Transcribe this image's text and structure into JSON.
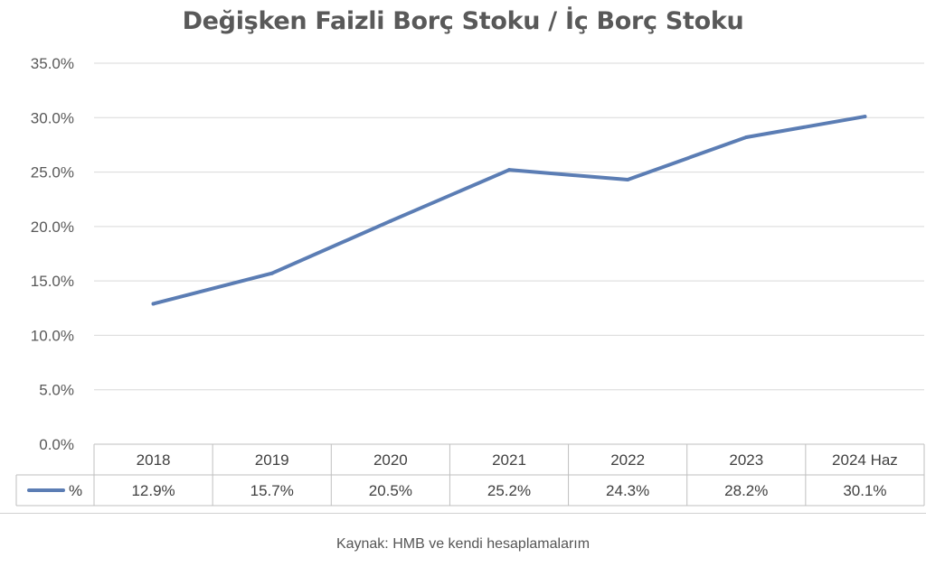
{
  "chart_data": {
    "type": "line",
    "title": "Değişken Faizli Borç Stoku / İç Borç Stoku",
    "categories": [
      "2018",
      "2019",
      "2020",
      "2021",
      "2022",
      "2023",
      "2024 Haz"
    ],
    "series": [
      {
        "name": "%",
        "values": [
          12.9,
          15.7,
          20.5,
          25.2,
          24.3,
          28.2,
          30.1
        ],
        "value_labels": [
          "12.9%",
          "15.7%",
          "20.5%",
          "25.2%",
          "24.3%",
          "28.2%",
          "30.1%"
        ],
        "color": "#5b7db4"
      }
    ],
    "y_ticks": [
      "0.0%",
      "5.0%",
      "10.0%",
      "15.0%",
      "20.0%",
      "25.0%",
      "30.0%",
      "35.0%"
    ],
    "ylim": [
      0,
      35
    ],
    "grid": true,
    "legend": "data-table-left"
  },
  "caption": "Kaynak: HMB ve kendi hesaplamalarım"
}
